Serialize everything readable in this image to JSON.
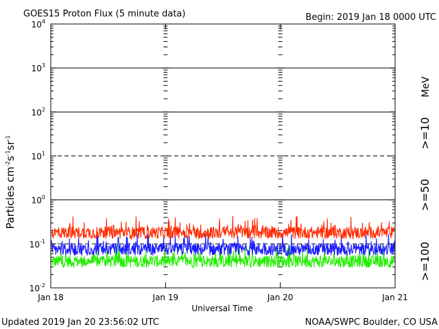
{
  "header": {
    "title": "GOES15 Proton Flux (5 minute data)",
    "begin": "Begin: 2019 Jan 18 0000 UTC"
  },
  "footer": {
    "updated": "Updated 2019 Jan 20 23:56:02 UTC",
    "credit": "NOAA/SWPC Boulder, CO USA"
  },
  "colors": {
    "p10": "#ff2a00",
    "p50": "#1a1aff",
    "p100": "#22ee00",
    "axis": "#000000"
  },
  "chart_data": {
    "type": "line",
    "title": "GOES15 Proton Flux (5 minute data)",
    "xlabel": "Universal Time",
    "ylabel": "Particles cm-2s-1sr-1",
    "yscale": "log",
    "ylim": [
      0.01,
      10000
    ],
    "grid": true,
    "legend_placement": "right",
    "x_ticks": [
      "Jan 18",
      "Jan 19",
      "Jan 20",
      "Jan 21"
    ],
    "y_ticks": [
      {
        "base": "10",
        "exp": "-2"
      },
      {
        "base": "10",
        "exp": "-1"
      },
      {
        "base": "10",
        "exp": "0"
      },
      {
        "base": "10",
        "exp": "1"
      },
      {
        "base": "10",
        "exp": "2"
      },
      {
        "base": "10",
        "exp": "3"
      },
      {
        "base": "10",
        "exp": "4"
      }
    ],
    "energy_unit": "MeV",
    "series": [
      {
        "name": ">=10",
        "color": "#ff2a00",
        "typical_value": 0.18,
        "range": [
          0.12,
          0.45
        ]
      },
      {
        "name": ">=50",
        "color": "#1a1aff",
        "typical_value": 0.075,
        "range": [
          0.045,
          0.17
        ]
      },
      {
        "name": ">=100",
        "color": "#22ee00",
        "typical_value": 0.04,
        "range": [
          0.025,
          0.1
        ]
      }
    ]
  }
}
